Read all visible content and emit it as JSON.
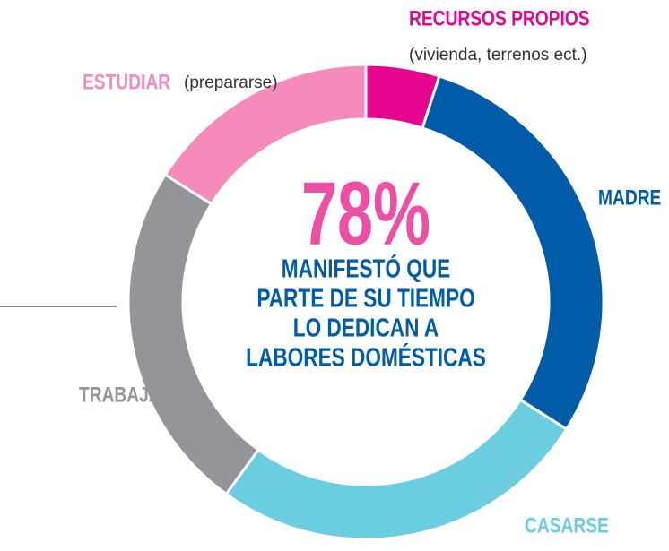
{
  "chart_data": {
    "type": "donut",
    "categories": [
      "RECURSOS PROPIOS",
      "MADRE",
      "CASARSE",
      "TRABAJAR",
      "ESTUDIAR"
    ],
    "sublabels": [
      "(vivienda, terrenos ect.)",
      null,
      null,
      null,
      "(prepararse)"
    ],
    "values": [
      5,
      29,
      26,
      24,
      16
    ],
    "colors": [
      "#e6058e",
      "#005ca8",
      "#6acde0",
      "#939598",
      "#f48bbb"
    ],
    "center_label": "78%",
    "center_text": [
      "MANIFESTÓ QUE",
      "PARTE DE SU TIEMPO",
      "LO DEDICAN A",
      "LABORES DOMÉSTICAS"
    ]
  }
}
